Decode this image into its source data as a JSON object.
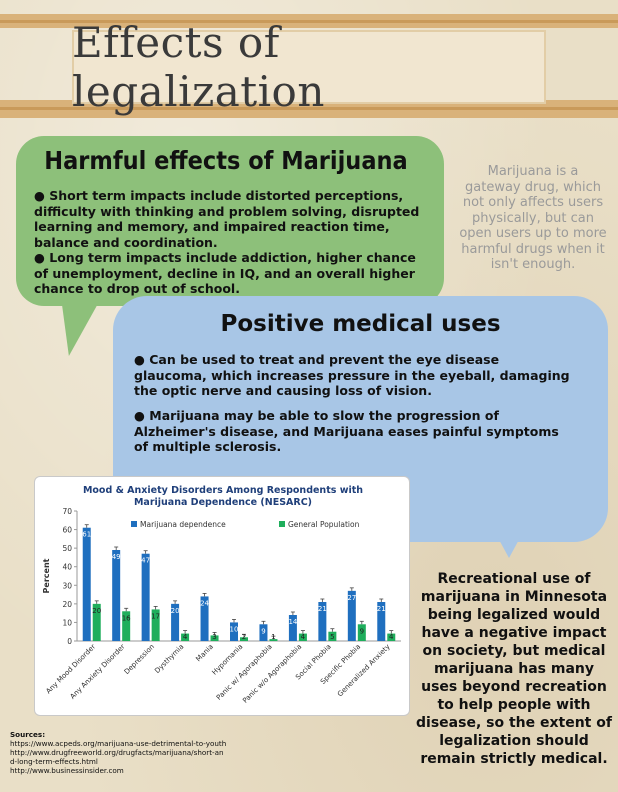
{
  "header": {
    "title": "Effects of legalization"
  },
  "harmful": {
    "title": "Harmful effects of Marijuana",
    "bullet1": "● Short term impacts include distorted perceptions, difficulty with thinking and problem solving, disrupted learning and memory, and impaired reaction time, balance and coordination.",
    "bullet2": "● Long term impacts include addiction, higher chance of unemployment, decline in IQ, and an overall higher chance to drop out of school."
  },
  "side_note": "Marijuana is a gateway drug, which not only affects users physically, but can open users up to more harmful drugs when it isn't enough.",
  "positive": {
    "title": "Positive medical uses",
    "bullet1": "●  Can be used to treat and prevent the eye disease glaucoma, which increases pressure in the eyeball, damaging the optic nerve and causing loss of vision.",
    "bullet2": "● Marijuana may be able to slow the progression of Alzheimer's disease, and Marijuana eases painful symptoms of multiple sclerosis."
  },
  "conclusion": "Recreational use of marijuana in Minnesota being legalized would have a negative impact on society, but medical marijuana has many uses beyond recreation to help people with disease, so the extent of legalization should remain strictly medical.",
  "sources": {
    "label": "Sources:",
    "lines": [
      "https://www.acpeds.org/marijuana-use-detrimental-to-youth",
      "http://www.drugfreeworld.org/drugfacts/marijuana/short-an",
      "d-long-term-effects.html",
      "http://www.businessinsider.com"
    ]
  },
  "colors": {
    "marijuana_series": "#1f6fbf",
    "general_series": "#1fae5c",
    "green_bubble": "#8dc07a",
    "blue_bubble": "#a8c6e6"
  },
  "chart_data": {
    "type": "bar",
    "title_line1": "Mood & Anxiety Disorders Among Respondents with",
    "title_line2": "Marijuana Dependence (NESARC)",
    "ylabel": "Percent",
    "xlabel": "",
    "ylim": [
      0,
      70
    ],
    "yticks": [
      0,
      10,
      20,
      30,
      40,
      50,
      60,
      70
    ],
    "grid": false,
    "legend_position": "top",
    "categories": [
      "Any Mood Disorder",
      "Any Anxiety Disorder",
      "Depression",
      "Dysthymia",
      "Mania",
      "Hypomania",
      "Panic w/ Agoraphobia",
      "Panic w/o Agoraphobia",
      "Social Phobia",
      "Specific Phobia",
      "Generalized Anxiety"
    ],
    "series": [
      {
        "name": "Marijuana dependence",
        "values": [
          61,
          49,
          47,
          20,
          24,
          10,
          9,
          14,
          21,
          27,
          21
        ],
        "labels": [
          "61",
          "49",
          "47",
          "20",
          "24",
          "10",
          "9",
          "14",
          "21",
          "27",
          "21"
        ]
      },
      {
        "name": "General Population",
        "values": [
          20,
          16,
          17,
          4,
          3,
          2,
          1,
          4,
          5,
          9,
          4
        ],
        "labels": [
          "20",
          "16",
          "17",
          "4",
          "3",
          "2",
          "1",
          "4",
          "5",
          "9",
          "4"
        ]
      }
    ]
  }
}
